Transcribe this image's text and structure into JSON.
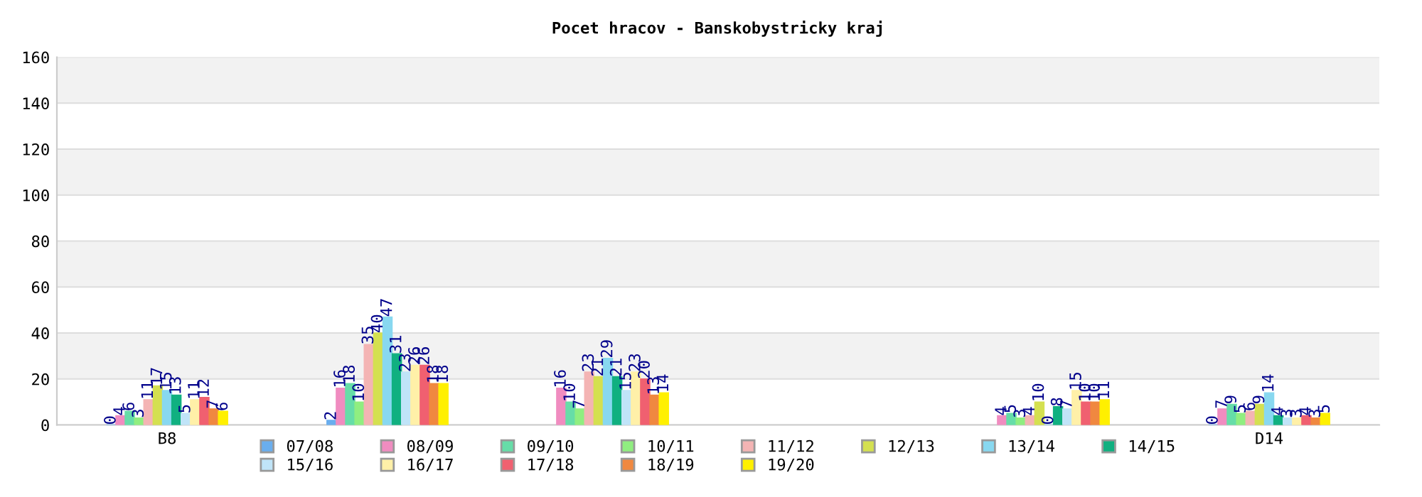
{
  "chart_data": {
    "type": "bar",
    "title": "Pocet hracov - Banskobystricky kraj",
    "categories": [
      "B8",
      null,
      null,
      null,
      null,
      "D14"
    ],
    "series": [
      {
        "name": "07/08",
        "color": "#6aaeee",
        "values": [
          0,
          2,
          null,
          null,
          null,
          0
        ]
      },
      {
        "name": "08/09",
        "color": "#f08cc0",
        "values": [
          4,
          16,
          16,
          null,
          4,
          7
        ]
      },
      {
        "name": "09/10",
        "color": "#66dda8",
        "values": [
          6,
          18,
          10,
          null,
          5,
          9
        ]
      },
      {
        "name": "10/11",
        "color": "#90ee80",
        "values": [
          3,
          10,
          7,
          null,
          3,
          5
        ]
      },
      {
        "name": "11/12",
        "color": "#f4b4b4",
        "values": [
          11,
          35,
          23,
          null,
          4,
          6
        ]
      },
      {
        "name": "12/13",
        "color": "#d4e050",
        "values": [
          17,
          40,
          21,
          null,
          10,
          9
        ]
      },
      {
        "name": "13/14",
        "color": "#88d8f0",
        "values": [
          15,
          47,
          29,
          null,
          0,
          14
        ]
      },
      {
        "name": "14/15",
        "color": "#10b080",
        "values": [
          13,
          31,
          21,
          null,
          8,
          4
        ]
      },
      {
        "name": "15/16",
        "color": "#c0e4f8",
        "values": [
          5,
          23,
          15,
          null,
          7,
          3
        ]
      },
      {
        "name": "16/17",
        "color": "#fff0a8",
        "values": [
          11,
          26,
          23,
          null,
          15,
          3
        ]
      },
      {
        "name": "17/18",
        "color": "#f06070",
        "values": [
          12,
          26,
          20,
          null,
          10,
          4
        ]
      },
      {
        "name": "18/19",
        "color": "#f08840",
        "values": [
          7,
          18,
          13,
          null,
          10,
          3
        ]
      },
      {
        "name": "19/20",
        "color": "#fff000",
        "values": [
          6,
          18,
          14,
          null,
          11,
          5
        ]
      }
    ],
    "ylim": [
      0,
      160
    ],
    "yticks": [
      0,
      20,
      40,
      60,
      80,
      100,
      120,
      140,
      160
    ],
    "bands": [
      {
        "axis": "y",
        "from": 20,
        "to": 40,
        "color": "#f2f2f2"
      },
      {
        "axis": "y",
        "from": 60,
        "to": 80,
        "color": "#f2f2f2"
      },
      {
        "axis": "y",
        "from": 100,
        "to": 120,
        "color": "#f2f2f2"
      },
      {
        "axis": "y",
        "from": 140,
        "to": 160,
        "color": "#f2f2f2"
      }
    ],
    "grid": "y",
    "legend": "bottom",
    "data_labels": true
  }
}
